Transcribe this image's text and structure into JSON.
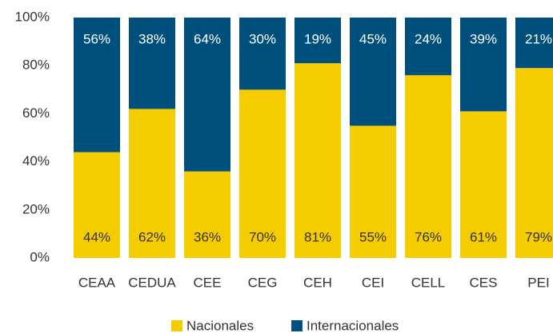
{
  "chart_data": {
    "type": "stacked_bar",
    "categories": [
      "CEAA",
      "CEDUA",
      "CEE",
      "CEG",
      "CEH",
      "CEI",
      "CELL",
      "CES",
      "PEI"
    ],
    "series": [
      {
        "name": "Nacionales",
        "color": "#f5cc00",
        "values": [
          44,
          62,
          36,
          70,
          81,
          55,
          76,
          61,
          79
        ],
        "value_labels": [
          "44%",
          "62%",
          "36%",
          "70%",
          "81%",
          "55%",
          "76%",
          "61%",
          "79%"
        ]
      },
      {
        "name": "Internacionales",
        "color": "#00507e",
        "values": [
          56,
          38,
          64,
          30,
          19,
          45,
          24,
          39,
          21
        ],
        "value_labels": [
          "56%",
          "38%",
          "64%",
          "30%",
          "19%",
          "45%",
          "24%",
          "39%",
          "21%"
        ]
      }
    ],
    "ylim": [
      0,
      100
    ],
    "yticks": [
      {
        "value": 0,
        "label": "0%"
      },
      {
        "value": 20,
        "label": "20%"
      },
      {
        "value": 40,
        "label": "40%"
      },
      {
        "value": 60,
        "label": "60%"
      },
      {
        "value": 80,
        "label": "80%"
      },
      {
        "value": 100,
        "label": "100%"
      }
    ],
    "grid": false,
    "legend": "bottom"
  }
}
